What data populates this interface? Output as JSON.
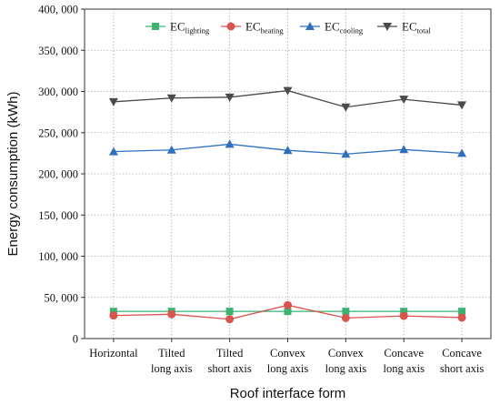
{
  "chart_data": {
    "type": "line",
    "xlabel": "Roof interface form",
    "ylabel": "Energy consumption (kWh)",
    "categories": [
      [
        "Horizontal"
      ],
      [
        "Tilted",
        "long axis"
      ],
      [
        "Tilted",
        "short axis"
      ],
      [
        "Convex",
        "long axis"
      ],
      [
        "Convex",
        "long axis"
      ],
      [
        "Concave",
        "long axis"
      ],
      [
        "Concave",
        "short axis"
      ]
    ],
    "ylim": [
      0,
      400000
    ],
    "yticks": [
      0,
      50000,
      100000,
      150000,
      200000,
      250000,
      300000,
      350000,
      400000
    ],
    "ytick_labels": [
      "0",
      "50, 000",
      "100, 000",
      "150, 000",
      "200, 000",
      "250, 000",
      "300, 000",
      "350, 000",
      "400, 000"
    ],
    "grid": "dotted",
    "legend_position": "top",
    "series": [
      {
        "name": "EC",
        "name_sub": "lighting",
        "marker": "square",
        "color": "#3cb371",
        "values": [
          33000,
          33000,
          33000,
          33000,
          33000,
          33000,
          33000
        ]
      },
      {
        "name": "EC",
        "name_sub": "heating",
        "marker": "circle",
        "color": "#d9534f",
        "values": [
          28000,
          29500,
          23500,
          40500,
          25000,
          27500,
          25500
        ]
      },
      {
        "name": "EC",
        "name_sub": "cooling",
        "marker": "triangle-up",
        "color": "#2f6fc0",
        "values": [
          227000,
          229000,
          236000,
          228500,
          224000,
          229500,
          225000
        ]
      },
      {
        "name": "EC",
        "name_sub": "total",
        "marker": "triangle-down",
        "color": "#4a4a4a",
        "values": [
          287500,
          292000,
          293000,
          301000,
          281000,
          290500,
          283500
        ]
      }
    ]
  }
}
